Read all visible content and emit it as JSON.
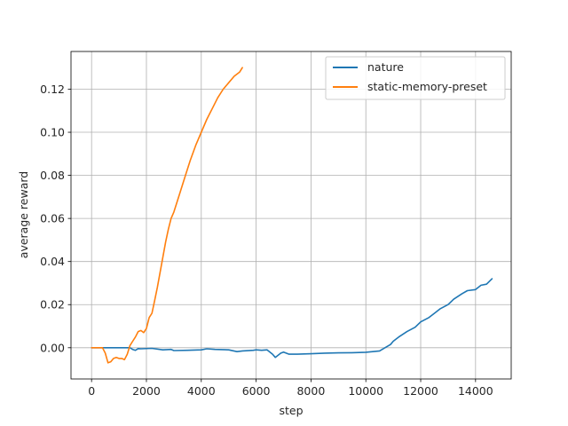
{
  "chart_data": {
    "type": "line",
    "xlabel": "step",
    "ylabel": "average reward",
    "xlim": [
      -750,
      15300
    ],
    "ylim": [
      -0.0145,
      0.1375
    ],
    "xticks": [
      0,
      2000,
      4000,
      6000,
      8000,
      10000,
      12000,
      14000
    ],
    "yticks": [
      0.0,
      0.02,
      0.04,
      0.06,
      0.08,
      0.1,
      0.12
    ],
    "xtick_labels": [
      "0",
      "2000",
      "4000",
      "6000",
      "8000",
      "10000",
      "12000",
      "14000"
    ],
    "ytick_labels": [
      "0.00",
      "0.02",
      "0.04",
      "0.06",
      "0.08",
      "0.10",
      "0.12"
    ],
    "grid": true,
    "legend_position": "top-right",
    "series": [
      {
        "name": "nature",
        "color": "#1f77b4",
        "x": [
          0,
          500,
          1000,
          1400,
          1500,
          1600,
          1700,
          1800,
          2200,
          2600,
          2900,
          3000,
          3500,
          4000,
          4200,
          4500,
          5000,
          5300,
          5500,
          5900,
          6000,
          6200,
          6400,
          6600,
          6700,
          6900,
          7000,
          7200,
          7500,
          8000,
          8500,
          9000,
          9500,
          10000,
          10500,
          10700,
          10900,
          11000,
          11200,
          11500,
          11800,
          12000,
          12300,
          12500,
          12700,
          13000,
          13200,
          13500,
          13700,
          14000,
          14200,
          14400,
          14600
        ],
        "y": [
          0.0,
          0.0,
          0.0,
          0.0,
          -0.0008,
          -0.0012,
          -0.0004,
          -0.0005,
          -0.0003,
          -0.001,
          -0.0008,
          -0.0013,
          -0.0012,
          -0.001,
          -0.0005,
          -0.0008,
          -0.001,
          -0.0018,
          -0.0015,
          -0.0012,
          -0.001,
          -0.0012,
          -0.001,
          -0.003,
          -0.0045,
          -0.0025,
          -0.002,
          -0.003,
          -0.003,
          -0.0028,
          -0.0025,
          -0.0024,
          -0.0023,
          -0.0021,
          -0.0015,
          0.0,
          0.0015,
          0.003,
          0.005,
          0.0075,
          0.0095,
          0.012,
          0.014,
          0.016,
          0.018,
          0.02,
          0.0225,
          0.025,
          0.0265,
          0.027,
          0.029,
          0.0295,
          0.032
        ]
      },
      {
        "name": "static-memory-preset",
        "color": "#ff7f0e",
        "x": [
          0,
          400,
          500,
          600,
          700,
          800,
          900,
          1000,
          1100,
          1200,
          1300,
          1400,
          1500,
          1600,
          1700,
          1800,
          1900,
          2000,
          2100,
          2200,
          2300,
          2400,
          2500,
          2600,
          2700,
          2800,
          2900,
          3000,
          3200,
          3400,
          3600,
          3800,
          4000,
          4200,
          4400,
          4600,
          4800,
          5000,
          5200,
          5400,
          5500
        ],
        "y": [
          0.0,
          0.0,
          -0.0025,
          -0.007,
          -0.0065,
          -0.005,
          -0.0045,
          -0.005,
          -0.005,
          -0.0055,
          -0.003,
          0.001,
          0.003,
          0.005,
          0.0075,
          0.008,
          0.007,
          0.009,
          0.014,
          0.016,
          0.022,
          0.028,
          0.035,
          0.042,
          0.049,
          0.055,
          0.06,
          0.063,
          0.071,
          0.079,
          0.087,
          0.094,
          0.1,
          0.106,
          0.111,
          0.116,
          0.12,
          0.123,
          0.126,
          0.128,
          0.13
        ]
      }
    ]
  }
}
